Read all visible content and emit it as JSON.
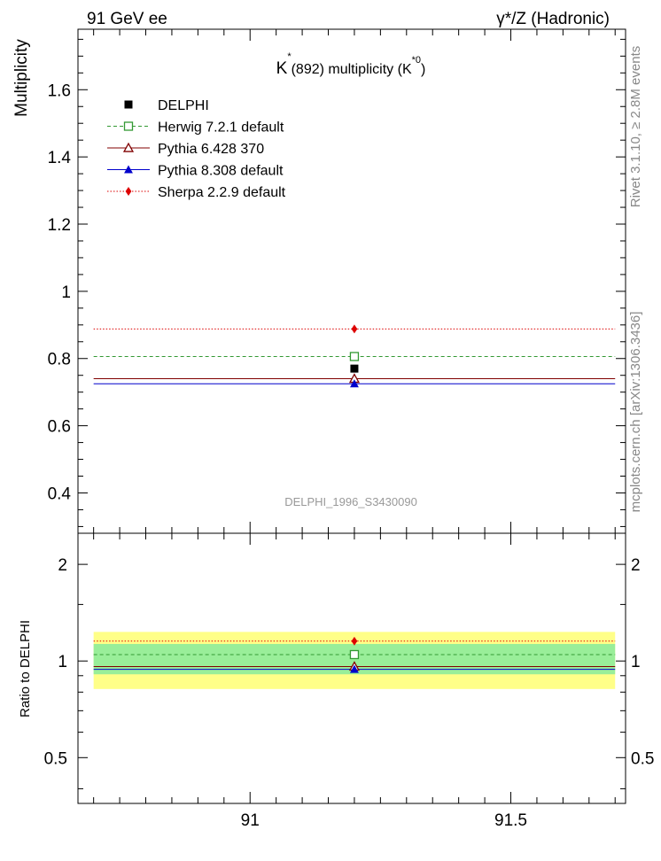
{
  "header": {
    "left": "91 GeV ee",
    "right": "γ*/Z (Hadronic)"
  },
  "side_labels": {
    "rivet": "Rivet 3.1.10, ≥ 2.8M events",
    "mcplots": "mcplots.cern.ch [arXiv:1306.3436]"
  },
  "chart_data": [
    {
      "type": "scatter",
      "title": "K*(892) multiplicity (K*0)",
      "title_parts": {
        "main": "K",
        "sup1": "*",
        "mid": "(892) multiplicity (K",
        "sup2": "*0",
        "end": ")"
      },
      "ylabel": "Multiplicity",
      "xlim": [
        90.67,
        91.72
      ],
      "ylim": [
        0.28,
        1.78
      ],
      "yticks": [
        0.4,
        0.6,
        0.8,
        1,
        1.2,
        1.4,
        1.6
      ],
      "yticklabels": [
        "0.4",
        "0.6",
        "0.8",
        "1",
        "1.2",
        "1.4",
        "1.6"
      ],
      "watermark": "DELPHI_1996_S3430090",
      "legend_position": "top-left",
      "data_x": 91.2,
      "bin": [
        90.7,
        91.7
      ],
      "series": [
        {
          "name": "DELPHI",
          "value": 0.77,
          "color": "#000000",
          "marker": "square-filled",
          "line": "none"
        },
        {
          "name": "Herwig 7.2.1 default",
          "value": 0.806,
          "color": "#339933",
          "marker": "square-open",
          "line": "dashed"
        },
        {
          "name": "Pythia 6.428 370",
          "value": 0.74,
          "color": "#800000",
          "marker": "triangle-open",
          "line": "solid"
        },
        {
          "name": "Pythia 8.308 default",
          "value": 0.725,
          "color": "#0000cc",
          "marker": "triangle-filled",
          "line": "solid"
        },
        {
          "name": "Sherpa 2.2.9 default",
          "value": 0.888,
          "color": "#dd0000",
          "marker": "diamond-filled",
          "line": "dotted"
        }
      ]
    },
    {
      "type": "scatter",
      "ylabel": "Ratio to DELPHI",
      "xlim": [
        90.67,
        91.72
      ],
      "ylim": [
        0.36,
        2.5
      ],
      "yscale": "log",
      "yticks": [
        0.5,
        1,
        2
      ],
      "yticklabels": [
        "0.5",
        "1",
        "2"
      ],
      "xticks": [
        91,
        91.5
      ],
      "xticklabels": [
        "91",
        "91.5"
      ],
      "bands": [
        {
          "lo": 0.818,
          "hi": 1.232,
          "color": "#ffff88"
        },
        {
          "lo": 0.909,
          "hi": 1.13,
          "color": "#99ee99"
        }
      ],
      "ratios": [
        1.0,
        1.047,
        0.961,
        0.942,
        1.153
      ]
    }
  ]
}
